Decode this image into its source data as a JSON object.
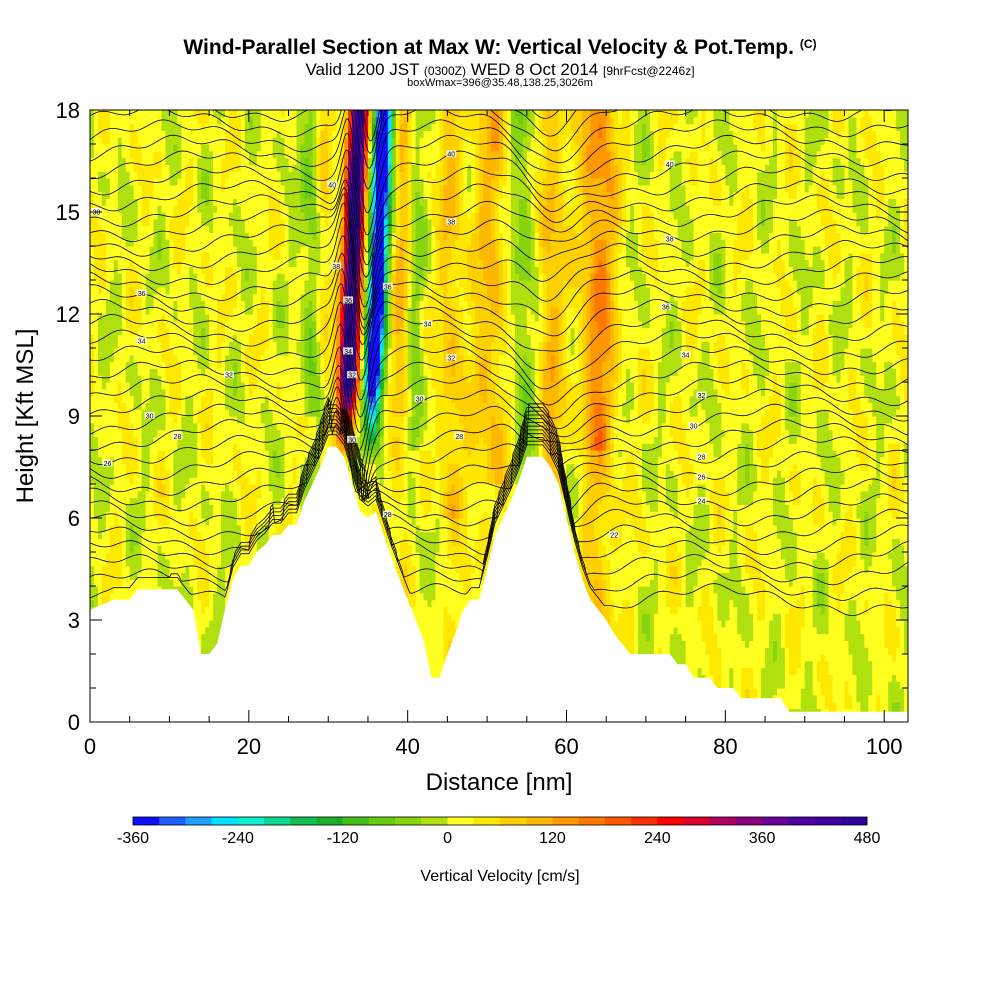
{
  "title": {
    "main": "Wind-Parallel Section at Max W: Vertical Velocity & Pot.Temp.",
    "copyright": "(C)",
    "valid_prefix": "Valid 1200 JST",
    "valid_utc": "(0300Z)",
    "valid_date": "WED 8 Oct 2014",
    "forecast": "[9hrFcst@2246z]",
    "subline": "boxWmax=396@35.48,138.25,3026m"
  },
  "chart_data": {
    "type": "heatmap",
    "xlabel": "Distance [nm]",
    "ylabel": "Height [Kft MSL]",
    "xlim": [
      0,
      103
    ],
    "ylim": [
      0,
      18
    ],
    "x_ticks": [
      0,
      20,
      40,
      60,
      80,
      100
    ],
    "y_ticks": [
      0,
      3,
      6,
      9,
      12,
      15,
      18
    ],
    "colorbar": {
      "label": "Vertical Velocity [cm/s]",
      "levels": [
        -360,
        -330,
        -300,
        -270,
        -240,
        -210,
        -180,
        -150,
        -120,
        -90,
        -60,
        -30,
        0,
        30,
        60,
        90,
        120,
        150,
        180,
        210,
        240,
        270,
        300,
        330,
        360,
        390,
        420,
        450,
        480
      ],
      "tick_labels": [
        "-360",
        "-240",
        "-120",
        "0",
        "120",
        "240",
        "360",
        "480"
      ],
      "tick_values": [
        -360,
        -240,
        -120,
        0,
        120,
        240,
        360,
        480
      ],
      "colors": [
        "#1010ff",
        "#1f5fff",
        "#1ea0ff",
        "#00e0ff",
        "#10f0d0",
        "#10d890",
        "#10c050",
        "#18b028",
        "#44c018",
        "#66cc10",
        "#88d410",
        "#b0e010",
        "#ffff20",
        "#ffe800",
        "#ffd000",
        "#ffb800",
        "#ff9800",
        "#ff7800",
        "#ff5800",
        "#ff3000",
        "#ff0000",
        "#d8002c",
        "#b00060",
        "#8a0080",
        "#6a009a",
        "#5000a0",
        "#4000a0",
        "#3000a0"
      ]
    },
    "terrain_kft": {
      "x": [
        0,
        3,
        5,
        6,
        7,
        9,
        10,
        11,
        12,
        13,
        14,
        15,
        16,
        17,
        18,
        19,
        20,
        21,
        22,
        23,
        24,
        25,
        26,
        27,
        28,
        29,
        30,
        31,
        32,
        33,
        34,
        35,
        36,
        37,
        38,
        39,
        40,
        41,
        42,
        43,
        44,
        45,
        46,
        47,
        48,
        49,
        50,
        51,
        52,
        53,
        54,
        55,
        56,
        57,
        58,
        59,
        60,
        61,
        62,
        63,
        64,
        65,
        66,
        67,
        68,
        69,
        70,
        71,
        72,
        73,
        74,
        75,
        76,
        77,
        78,
        79,
        80,
        81,
        82,
        83,
        84,
        85,
        86,
        87,
        88,
        90,
        92,
        95,
        100,
        103
      ],
      "values": [
        3.3,
        3.6,
        3.6,
        3.9,
        3.9,
        3.9,
        3.9,
        3.9,
        3.6,
        3.3,
        2.0,
        2.0,
        2.3,
        3.3,
        4.2,
        4.6,
        4.6,
        5.0,
        5.2,
        5.5,
        5.5,
        5.8,
        5.8,
        6.5,
        7.0,
        7.5,
        8.1,
        8.1,
        7.8,
        7.0,
        6.2,
        6.0,
        6.2,
        5.5,
        4.8,
        4.2,
        3.6,
        3.0,
        2.4,
        1.3,
        1.3,
        2.0,
        2.6,
        3.3,
        3.6,
        3.6,
        4.5,
        5.5,
        6.0,
        6.5,
        7.1,
        7.8,
        7.8,
        7.8,
        7.5,
        7.0,
        6.0,
        5.0,
        4.2,
        3.6,
        3.3,
        3.0,
        2.6,
        2.3,
        2.0,
        2.0,
        2.0,
        2.0,
        2.0,
        2.0,
        1.7,
        1.7,
        1.3,
        1.3,
        1.3,
        1.0,
        1.0,
        1.0,
        0.7,
        0.7,
        0.7,
        0.7,
        0.7,
        0.7,
        0.3,
        0.3,
        0.3,
        0.3,
        0.3,
        0.3
      ]
    },
    "theta_contour_labels": [
      {
        "x": 0.8,
        "y": 15.0,
        "label": "38"
      },
      {
        "x": 6.5,
        "y": 12.6,
        "label": "36"
      },
      {
        "x": 6.5,
        "y": 11.2,
        "label": "34"
      },
      {
        "x": 17.5,
        "y": 10.2,
        "label": "32"
      },
      {
        "x": 7.5,
        "y": 9.0,
        "label": "30"
      },
      {
        "x": 11.0,
        "y": 8.4,
        "label": "28"
      },
      {
        "x": 2.2,
        "y": 7.6,
        "label": "26"
      },
      {
        "x": 30.5,
        "y": 15.8,
        "label": "40"
      },
      {
        "x": 31.0,
        "y": 13.4,
        "label": "38"
      },
      {
        "x": 32.5,
        "y": 12.4,
        "label": "36"
      },
      {
        "x": 32.5,
        "y": 10.9,
        "label": "34"
      },
      {
        "x": 33.0,
        "y": 10.2,
        "label": "32"
      },
      {
        "x": 33.0,
        "y": 8.3,
        "label": "30"
      },
      {
        "x": 37.5,
        "y": 12.8,
        "label": "36"
      },
      {
        "x": 42.5,
        "y": 11.7,
        "label": "34"
      },
      {
        "x": 45.5,
        "y": 10.7,
        "label": "32"
      },
      {
        "x": 41.5,
        "y": 9.5,
        "label": "30"
      },
      {
        "x": 46.5,
        "y": 8.4,
        "label": "28"
      },
      {
        "x": 37.5,
        "y": 6.1,
        "label": "28"
      },
      {
        "x": 45.5,
        "y": 16.7,
        "label": "40"
      },
      {
        "x": 45.5,
        "y": 14.7,
        "label": "38"
      },
      {
        "x": 73.0,
        "y": 16.4,
        "label": "40"
      },
      {
        "x": 73.0,
        "y": 14.2,
        "label": "38"
      },
      {
        "x": 72.5,
        "y": 12.2,
        "label": "36"
      },
      {
        "x": 75.0,
        "y": 10.8,
        "label": "34"
      },
      {
        "x": 77.0,
        "y": 9.6,
        "label": "32"
      },
      {
        "x": 76.0,
        "y": 8.7,
        "label": "30"
      },
      {
        "x": 77.0,
        "y": 7.8,
        "label": "28"
      },
      {
        "x": 77.0,
        "y": 7.2,
        "label": "26"
      },
      {
        "x": 77.0,
        "y": 6.5,
        "label": "24"
      },
      {
        "x": 66.0,
        "y": 5.5,
        "label": "22"
      }
    ]
  }
}
